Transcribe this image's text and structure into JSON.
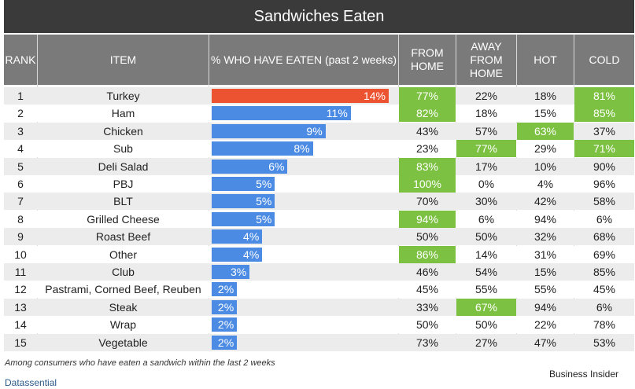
{
  "chart_data": {
    "type": "table",
    "title": "Sandwiches Eaten",
    "columns": [
      "RANK",
      "ITEM",
      "% WHO HAVE EATEN (past 2 weeks)",
      "FROM HOME",
      "AWAY FROM HOME",
      "HOT",
      "COLD"
    ],
    "bar_max": 14,
    "rows": [
      {
        "rank": "1",
        "item": "Turkey",
        "value": 14,
        "label": "14%",
        "from_home": "77%",
        "away": "22%",
        "hot": "18%",
        "cold": "81%",
        "hl": [
          "from_home",
          "cold"
        ]
      },
      {
        "rank": "2",
        "item": "Ham",
        "value": 11,
        "label": "11%",
        "from_home": "82%",
        "away": "18%",
        "hot": "15%",
        "cold": "85%",
        "hl": [
          "from_home",
          "cold"
        ]
      },
      {
        "rank": "3",
        "item": "Chicken",
        "value": 9,
        "label": "9%",
        "from_home": "43%",
        "away": "57%",
        "hot": "63%",
        "cold": "37%",
        "hl": [
          "hot"
        ]
      },
      {
        "rank": "4",
        "item": "Sub",
        "value": 8,
        "label": "8%",
        "from_home": "23%",
        "away": "77%",
        "hot": "29%",
        "cold": "71%",
        "hl": [
          "away",
          "cold"
        ]
      },
      {
        "rank": "5",
        "item": "Deli Salad",
        "value": 6,
        "label": "6%",
        "from_home": "83%",
        "away": "17%",
        "hot": "10%",
        "cold": "90%",
        "hl": [
          "from_home"
        ]
      },
      {
        "rank": "6",
        "item": "PBJ",
        "value": 5,
        "label": "5%",
        "from_home": "100%",
        "away": "0%",
        "hot": "4%",
        "cold": "96%",
        "hl": [
          "from_home"
        ]
      },
      {
        "rank": "7",
        "item": "BLT",
        "value": 5,
        "label": "5%",
        "from_home": "70%",
        "away": "30%",
        "hot": "42%",
        "cold": "58%",
        "hl": []
      },
      {
        "rank": "8",
        "item": "Grilled Cheese",
        "value": 5,
        "label": "5%",
        "from_home": "94%",
        "away": "6%",
        "hot": "94%",
        "cold": "6%",
        "hl": [
          "from_home"
        ]
      },
      {
        "rank": "9",
        "item": "Roast Beef",
        "value": 4,
        "label": "4%",
        "from_home": "50%",
        "away": "50%",
        "hot": "32%",
        "cold": "68%",
        "hl": []
      },
      {
        "rank": "10",
        "item": "Other",
        "value": 4,
        "label": "4%",
        "from_home": "86%",
        "away": "14%",
        "hot": "31%",
        "cold": "69%",
        "hl": [
          "from_home"
        ]
      },
      {
        "rank": "11",
        "item": "Club",
        "value": 3,
        "label": "3%",
        "from_home": "46%",
        "away": "54%",
        "hot": "15%",
        "cold": "85%",
        "hl": []
      },
      {
        "rank": "12",
        "item": "Pastrami, Corned Beef, Reuben",
        "value": 2,
        "label": "2%",
        "from_home": "45%",
        "away": "55%",
        "hot": "55%",
        "cold": "45%",
        "hl": []
      },
      {
        "rank": "13",
        "item": "Steak",
        "value": 2,
        "label": "2%",
        "from_home": "33%",
        "away": "67%",
        "hot": "94%",
        "cold": "6%",
        "hl": [
          "away"
        ]
      },
      {
        "rank": "14",
        "item": "Wrap",
        "value": 2,
        "label": "2%",
        "from_home": "50%",
        "away": "50%",
        "hot": "22%",
        "cold": "78%",
        "hl": []
      },
      {
        "rank": "15",
        "item": "Vegetable",
        "value": 2,
        "label": "2%",
        "from_home": "73%",
        "away": "27%",
        "hot": "47%",
        "cold": "53%",
        "hl": []
      }
    ],
    "note": "Among consumers who have eaten a sandwich within the last 2 weeks",
    "source": "Datassential",
    "credit": "Business Insider",
    "colors": {
      "header": "#7a7a7a",
      "title_bg": "#3a3a3a",
      "top_bar": "#ec5330",
      "bar": "#4b8be3",
      "highlight": "#7dc142",
      "row_even": "#ececec"
    }
  }
}
